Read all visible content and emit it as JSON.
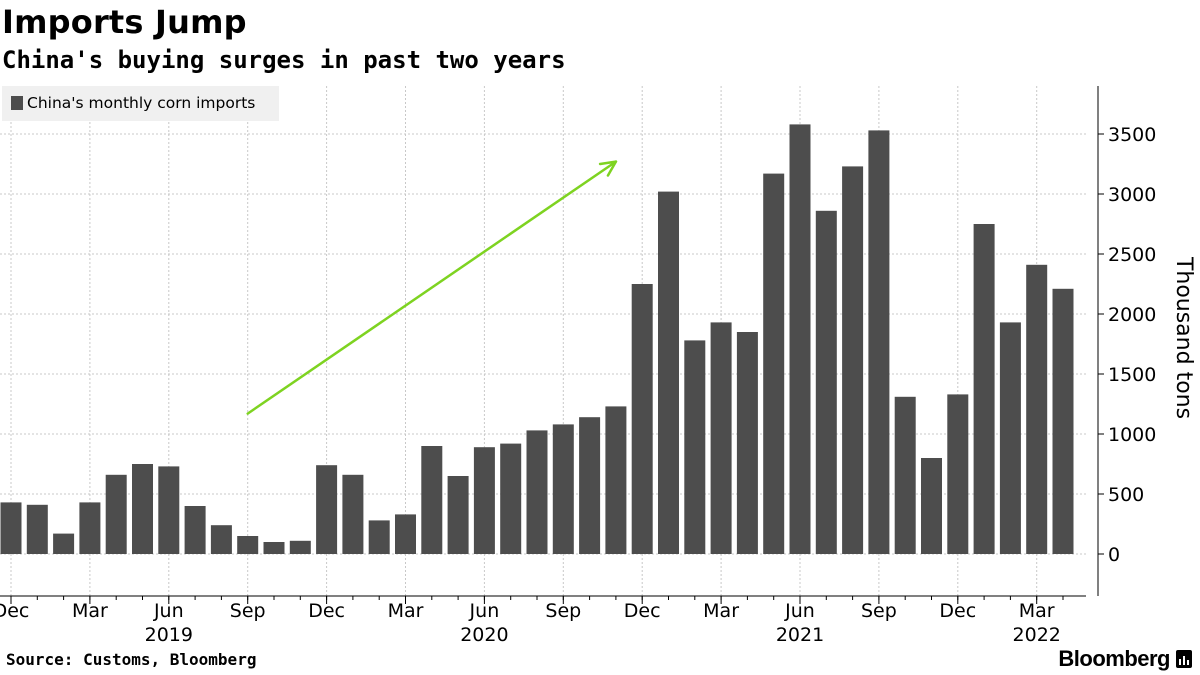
{
  "header": {
    "title": "Imports Jump",
    "subtitle": "China's buying surges in past two years"
  },
  "footer": {
    "source": "Source: Customs, Bloomberg",
    "brand": "Bloomberg"
  },
  "colors": {
    "bar": "#4d4d4d",
    "arrow": "#7ed321",
    "grid": "#c8c8c8",
    "legend_bg": "#f0f0f0"
  },
  "chart_data": {
    "type": "bar",
    "legend": "China's monthly corn imports",
    "ylabel": "Thousand tons",
    "ylim": [
      -350,
      3900
    ],
    "yticks": [
      0,
      500,
      1000,
      1500,
      2000,
      2500,
      3000,
      3500
    ],
    "legend_position": "top-left",
    "grid": true,
    "categories": [
      "2018-12",
      "2019-01",
      "2019-02",
      "2019-03",
      "2019-04",
      "2019-05",
      "2019-06",
      "2019-07",
      "2019-08",
      "2019-09",
      "2019-10",
      "2019-11",
      "2019-12",
      "2020-01",
      "2020-02",
      "2020-03",
      "2020-04",
      "2020-05",
      "2020-06",
      "2020-07",
      "2020-08",
      "2020-09",
      "2020-10",
      "2020-11",
      "2020-12",
      "2021-01",
      "2021-02",
      "2021-03",
      "2021-04",
      "2021-05",
      "2021-06",
      "2021-07",
      "2021-08",
      "2021-09",
      "2021-10",
      "2021-11",
      "2021-12",
      "2022-01",
      "2022-02",
      "2022-03",
      "2022-04"
    ],
    "values": [
      430,
      410,
      170,
      430,
      660,
      750,
      730,
      400,
      240,
      150,
      100,
      110,
      740,
      660,
      280,
      330,
      900,
      650,
      890,
      920,
      1030,
      1080,
      1140,
      1230,
      2250,
      3020,
      1780,
      1930,
      1850,
      3170,
      3580,
      2860,
      3230,
      3530,
      1310,
      800,
      1330,
      2750,
      1930,
      2410,
      2210
    ],
    "x_tick_labels": [
      {
        "month": "2018-12",
        "label": "Dec"
      },
      {
        "month": "2019-03",
        "label": "Mar"
      },
      {
        "month": "2019-06",
        "label": "Jun"
      },
      {
        "month": "2019-09",
        "label": "Sep"
      },
      {
        "month": "2019-12",
        "label": "Dec"
      },
      {
        "month": "2020-03",
        "label": "Mar"
      },
      {
        "month": "2020-06",
        "label": "Jun"
      },
      {
        "month": "2020-09",
        "label": "Sep"
      },
      {
        "month": "2020-12",
        "label": "Dec"
      },
      {
        "month": "2021-03",
        "label": "Mar"
      },
      {
        "month": "2021-06",
        "label": "Jun"
      },
      {
        "month": "2021-09",
        "label": "Sep"
      },
      {
        "month": "2021-12",
        "label": "Dec"
      },
      {
        "month": "2022-03",
        "label": "Mar"
      }
    ],
    "year_labels": [
      {
        "month": "2019-06",
        "label": "2019"
      },
      {
        "month": "2020-06",
        "label": "2020"
      },
      {
        "month": "2021-06",
        "label": "2021"
      },
      {
        "month": "2022-03",
        "label": "2022"
      }
    ],
    "annotations": [
      {
        "type": "arrow",
        "from": {
          "month": "2019-09",
          "value": 1170
        },
        "to": {
          "month": "2020-11",
          "value": 3270
        }
      }
    ]
  }
}
